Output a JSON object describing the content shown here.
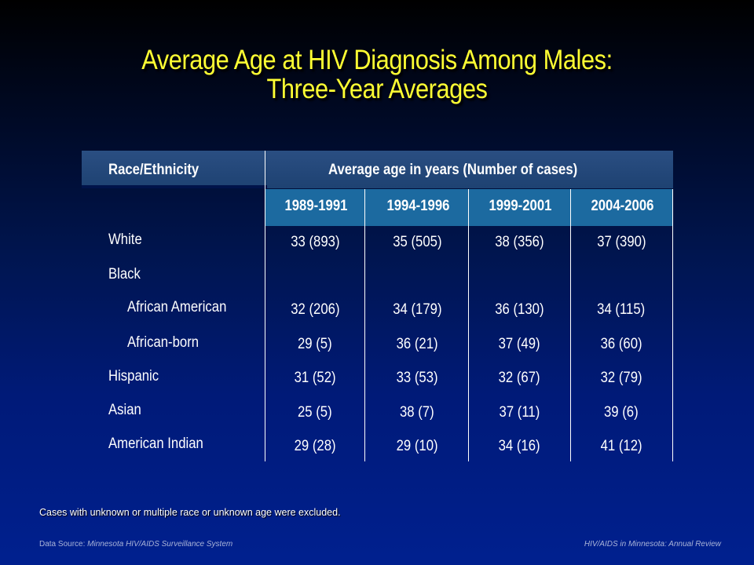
{
  "title": {
    "line1": "Average Age at HIV Diagnosis Among Males:",
    "line2": "Three-Year Averages"
  },
  "table": {
    "header_left": "Race/Ethnicity",
    "header_right": "Average age in years (Number of cases)",
    "years": [
      "1989-1991",
      "1994-1996",
      "1999-2001",
      "2004-2006"
    ],
    "rows": [
      {
        "label": "White",
        "values": [
          "33 (893)",
          "35 (505)",
          "38 (356)",
          "37 (390)"
        ]
      },
      {
        "label": "Black",
        "values": [
          "",
          "",
          "",
          ""
        ]
      },
      {
        "label": "African American",
        "values": [
          "32 (206)",
          "34 (179)",
          "36 (130)",
          "34 (115)"
        ]
      },
      {
        "label": "African-born",
        "values": [
          "29 (5)",
          "36 (21)",
          "37 (49)",
          "36 (60)"
        ]
      },
      {
        "label": "Hispanic",
        "values": [
          "31 (52)",
          "33 (53)",
          "32 (67)",
          "32 (79)"
        ]
      },
      {
        "label": "Asian",
        "values": [
          "25 (5)",
          "38 (7)",
          "37 (11)",
          "39 (6)"
        ]
      },
      {
        "label": "American Indian",
        "values": [
          "29 (28)",
          "29 (10)",
          "34 (16)",
          "41 (12)"
        ]
      }
    ]
  },
  "note": "Cases with unknown or multiple race or unknown age were excluded.",
  "footer": {
    "source_prefix": "Data Source: ",
    "source_name": "Minnesota HIV/AIDS Surveillance System",
    "report": "HIV/AIDS in Minnesota: Annual Review"
  },
  "colors": {
    "title": "#ffff33",
    "header_bar": "#24487a",
    "years_bar": "#1c6aa0"
  }
}
